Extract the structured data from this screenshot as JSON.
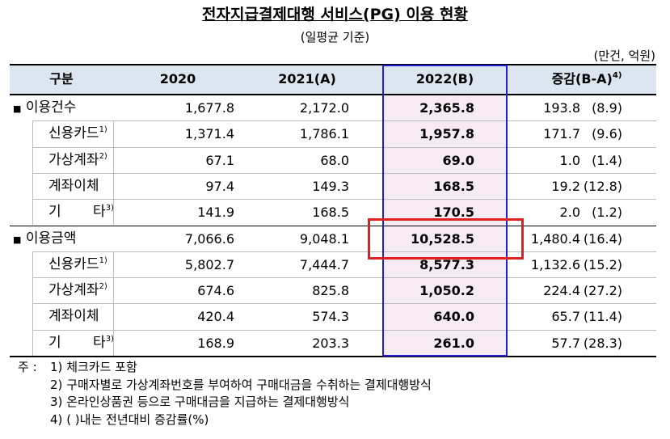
{
  "title": "전자지급결제대행 서비스(PG) 이용 현황",
  "subtitle": "(일평균 기준)",
  "unit": "(만건, 억원)",
  "table": {
    "header": [
      "구분",
      "2020",
      "2021(A)",
      "2022(B)",
      "증감(B-A)"
    ],
    "header_sup": "4)",
    "rows": [
      {
        "marker": "■",
        "label": "이용건수",
        "cells": [
          "1,677.8",
          "2,172.0",
          "2,365.8",
          "193.8",
          "(8.9)"
        ]
      },
      {
        "label": "신용카드",
        "sup": "1)",
        "cells": [
          "1,371.4",
          "1,786.1",
          "1,957.8",
          "171.7",
          "(9.6)"
        ]
      },
      {
        "label": "가상계좌",
        "sup": "2)",
        "cells": [
          "67.1",
          "68.0",
          "69.0",
          "1.0",
          "(1.4)"
        ]
      },
      {
        "label": "계좌이체",
        "cells": [
          "97.4",
          "149.3",
          "168.5",
          "19.2",
          "(12.8)"
        ]
      },
      {
        "label": "기 타",
        "sup": "3)",
        "cells": [
          "141.9",
          "168.5",
          "170.5",
          "2.0",
          "(1.2)"
        ]
      },
      {
        "marker": "■",
        "label": "이용금액",
        "cells": [
          "7,066.6",
          "9,048.1",
          "10,528.5",
          "1,480.4",
          "(16.4)"
        ]
      },
      {
        "label": "신용카드",
        "sup": "1)",
        "cells": [
          "5,802.7",
          "7,444.7",
          "8,577.3",
          "1,132.6",
          "(15.2)"
        ]
      },
      {
        "label": "가상계좌",
        "sup": "2)",
        "cells": [
          "674.6",
          "825.8",
          "1,050.2",
          "224.4",
          "(27.2)"
        ]
      },
      {
        "label": "계좌이체",
        "cells": [
          "420.4",
          "574.3",
          "640.0",
          "65.7",
          "(11.4)"
        ]
      },
      {
        "label": "기 타",
        "sup": "3)",
        "cells": [
          "168.9",
          "203.3",
          "261.0",
          "57.7",
          "(28.3)"
        ]
      }
    ]
  },
  "notes": {
    "prefix": "주 :",
    "items": [
      {
        "num": "1)",
        "text": "체크카드 포함"
      },
      {
        "num": "2)",
        "text": "구매자별로 가상계좌번호를 부여하여 구매대금을 수취하는 결제대행방식"
      },
      {
        "num": "3)",
        "text": "온라인상품권 등으로 구매대금을 지급하는 결제대행방식"
      },
      {
        "num": "4)",
        "text": "( )내는 전년대비 증감률(%)"
      }
    ]
  }
}
